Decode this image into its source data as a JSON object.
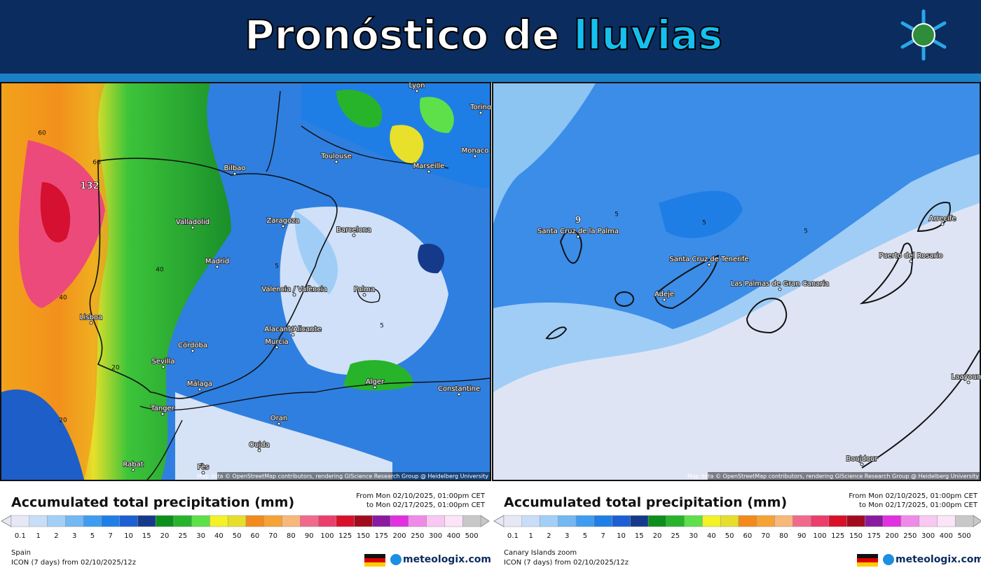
{
  "header": {
    "title_main": "Pronóstico de",
    "title_accent": "lluvias"
  },
  "panels": [
    {
      "cities": [
        "Lyon",
        "Torino",
        "Bilbao",
        "Toulouse",
        "Marseille",
        "Monaco",
        "Valladolid",
        "Zaragoza",
        "Barcelona",
        "Madrid",
        "Valencia / València",
        "Palma",
        "Lisboa",
        "Alacant/Alicante",
        "Murcia",
        "Córdoba",
        "Sevilla",
        "Alger",
        "Constantine",
        "Málaga",
        "Tanger",
        "Oran",
        "Oujda",
        "Rabat",
        "Fès"
      ],
      "peak": "132",
      "contour_labels": [
        "60",
        "40",
        "20",
        "60",
        "40",
        "20",
        "5",
        "5"
      ],
      "attribution": "Map data © OpenStreetMap contributors, rendering GIScience Research Group @ Heidelberg University",
      "legend": {
        "title": "Accumulated total precipitation (mm)",
        "from": "From Mon 02/10/2025, 01:00pm CET",
        "to": "to Mon 02/17/2025, 01:00pm CET",
        "region": "Spain",
        "model": "ICON (7 days) from 02/10/2025/12z",
        "brand": "meteologix.com"
      }
    },
    {
      "cities": [
        "Santa Cruz de la Palma",
        "Santa Cruz de Tenerife",
        "Adeje",
        "Las Palmas de Gran Canaria",
        "Puerto del Rosario",
        "Arrecife",
        "Laayoune",
        "Boujdour"
      ],
      "peak": "9",
      "contour_labels": [
        "5",
        "5",
        "5"
      ],
      "attribution": "Map data © OpenStreetMap contributors, rendering GIScience Research Group @ Heidelberg University",
      "legend": {
        "title": "Accumulated total precipitation (mm)",
        "from": "From Mon 02/10/2025, 01:00pm CET",
        "to": "to Mon 02/17/2025, 01:00pm CET",
        "region": "Canary Islands zoom",
        "model": "ICON (7 days) from 02/10/2025/12z",
        "brand": "meteologix.com"
      }
    }
  ],
  "scale": [
    "0.1",
    "1",
    "2",
    "3",
    "5",
    "7",
    "10",
    "15",
    "20",
    "25",
    "30",
    "40",
    "50",
    "60",
    "70",
    "80",
    "90",
    "100",
    "125",
    "150",
    "175",
    "200",
    "250",
    "300",
    "400",
    "500"
  ]
}
